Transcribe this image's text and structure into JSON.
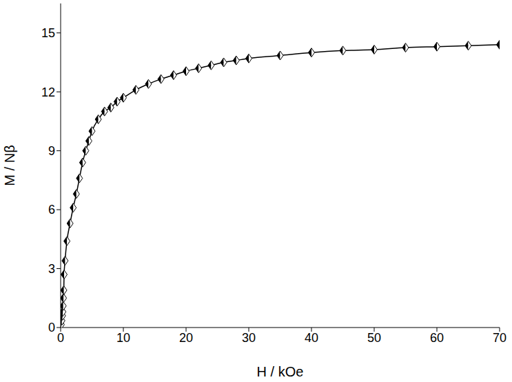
{
  "chart_data": {
    "type": "line",
    "x_label": "H / kOe",
    "y_label": "M / Nβ",
    "x": [
      0.1,
      0.2,
      0.3,
      0.35,
      0.4,
      0.45,
      0.5,
      0.55,
      0.7,
      1.0,
      1.5,
      2.0,
      2.5,
      3.0,
      3.5,
      4.0,
      4.5,
      5,
      6,
      7,
      8,
      9,
      10,
      12,
      14,
      16,
      18,
      20,
      22,
      24,
      26,
      28,
      30,
      35,
      40,
      45,
      50,
      55,
      60,
      65,
      70
    ],
    "values": [
      0.15,
      0.35,
      0.6,
      0.8,
      1.1,
      1.5,
      1.9,
      2.7,
      3.4,
      4.4,
      5.3,
      6.1,
      6.8,
      7.6,
      8.4,
      9.0,
      9.5,
      10.0,
      10.6,
      11.0,
      11.2,
      11.5,
      11.7,
      12.1,
      12.4,
      12.65,
      12.85,
      13.05,
      13.2,
      13.35,
      13.5,
      13.6,
      13.7,
      13.85,
      14.0,
      14.1,
      14.15,
      14.25,
      14.3,
      14.35,
      14.4
    ],
    "xlim": [
      0,
      70
    ],
    "ylim": [
      0,
      16.5
    ],
    "xticks": [
      0,
      10,
      20,
      30,
      40,
      50,
      60,
      70
    ],
    "yticks": [
      0,
      3,
      6,
      9,
      12,
      15
    ],
    "color": "#000000",
    "marker": "diamond",
    "line_style": "solid",
    "grid": false
  }
}
